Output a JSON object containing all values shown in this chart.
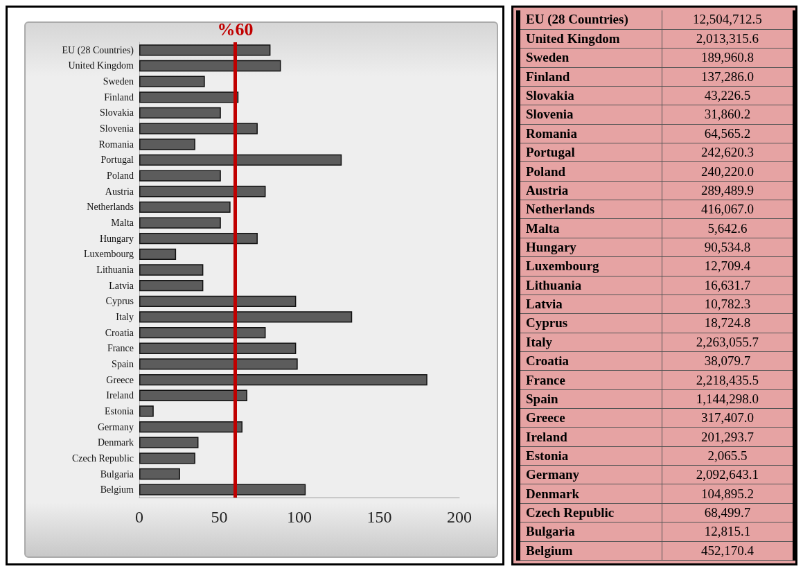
{
  "chart_data": [
    {
      "type": "bar",
      "orientation": "horizontal",
      "categories": [
        "EU (28 Countries)",
        "United Kingdom",
        "Sweden",
        "Finland",
        "Slovakia",
        "Slovenia",
        "Romania",
        "Portugal",
        "Poland",
        "Austria",
        "Netherlands",
        "Malta",
        "Hungary",
        "Luxembourg",
        "Lithuania",
        "Latvia",
        "Cyprus",
        "Italy",
        "Croatia",
        "France",
        "Spain",
        "Greece",
        "Ireland",
        "Estonia",
        "Germany",
        "Denmark",
        "Czech Republic",
        "Bulgaria",
        "Belgium"
      ],
      "values": [
        82,
        88.5,
        41,
        62,
        51,
        74,
        35,
        126.5,
        51,
        79,
        57,
        51,
        74,
        23,
        40,
        40,
        98,
        133,
        79,
        98,
        99,
        180,
        67.5,
        9,
        64.5,
        37,
        35,
        25.5,
        104
      ],
      "color": "#5c5c5c",
      "xlim": [
        0,
        200
      ],
      "xticks": [
        0,
        50,
        100,
        150,
        200
      ],
      "grid": false,
      "ref_lines": [
        {
          "axis": "x",
          "value": 60,
          "label": "%60",
          "color": "#c00000"
        }
      ]
    },
    {
      "type": "other",
      "categories": [
        "EU (28 Countries)",
        "United Kingdom",
        "Sweden",
        "Finland",
        "Slovakia",
        "Slovenia",
        "Romania",
        "Portugal",
        "Poland",
        "Austria",
        "Netherlands",
        "Malta",
        "Hungary",
        "Luxembourg",
        "Lithuania",
        "Latvia",
        "Cyprus",
        "Italy",
        "Croatia",
        "France",
        "Spain",
        "Greece",
        "Ireland",
        "Estonia",
        "Germany",
        "Denmark",
        "Czech Republic",
        "Bulgaria",
        "Belgium"
      ],
      "values": [
        12504712.5,
        2013315.6,
        189960.8,
        137286.0,
        43226.5,
        31860.2,
        64565.2,
        242620.3,
        240220.0,
        289489.9,
        416067.0,
        5642.6,
        90534.8,
        12709.4,
        16631.7,
        10782.3,
        18724.8,
        2263055.7,
        38079.7,
        2218435.5,
        1144298.0,
        317407.0,
        201293.7,
        2065.5,
        2092643.1,
        104895.2,
        68499.7,
        12815.1,
        452170.4
      ],
      "value_labels": [
        "12,504,712.5",
        "2,013,315.6",
        "189,960.8",
        "137,286.0",
        "43,226.5",
        "31,860.2",
        "64,565.2",
        "242,620.3",
        "240,220.0",
        "289,489.9",
        "416,067.0",
        "5,642.6",
        "90,534.8",
        "12,709.4",
        "16,631.7",
        "10,782.3",
        "18,724.8",
        "2,263,055.7",
        "38,079.7",
        "2,218,435.5",
        "1,144,298.0",
        "317,407.0",
        "201,293.7",
        "2,065.5",
        "2,092,643.1",
        "104,895.2",
        "68,499.7",
        "12,815.1",
        "452,170.4"
      ],
      "color": "#e6a3a3"
    }
  ]
}
